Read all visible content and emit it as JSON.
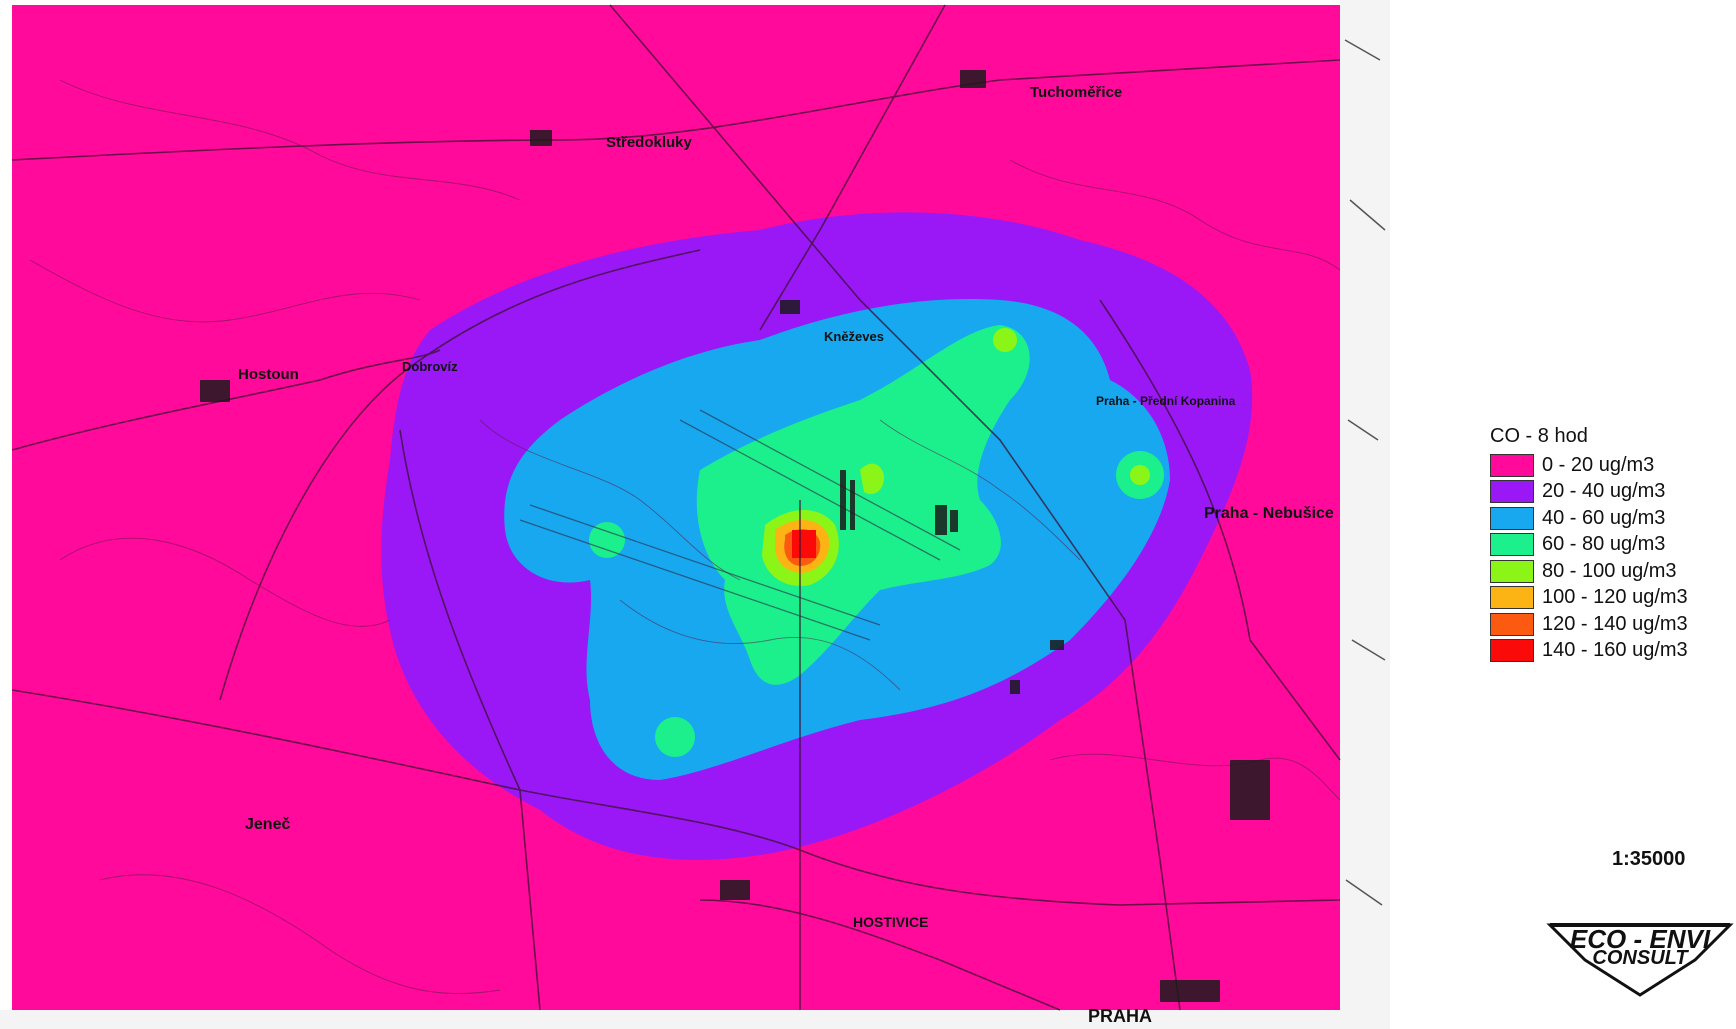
{
  "map": {
    "places": [
      {
        "id": "tuchomerice",
        "label": "Tuchoměřice"
      },
      {
        "id": "stredokluky",
        "label": "Středokluky"
      },
      {
        "id": "kneveves",
        "label": "Kněževes"
      },
      {
        "id": "hostoun",
        "label": "Hostoun"
      },
      {
        "id": "dobrovz",
        "label": "Dobrovíz"
      },
      {
        "id": "predni-kopanina",
        "label": "Praha - Přední Kopanina"
      },
      {
        "id": "nebusice",
        "label": "Praha - Nebušice"
      },
      {
        "id": "jenec",
        "label": "Jeneč"
      },
      {
        "id": "hostivice",
        "label": "HOSTIVICE"
      },
      {
        "id": "praha",
        "label": "PRAHA"
      }
    ]
  },
  "legend": {
    "title": "CO - 8 hod",
    "items": [
      {
        "label": "0 - 20 ug/m3",
        "color": "#ff0a9a"
      },
      {
        "label": "20 - 40 ug/m3",
        "color": "#9a18f5"
      },
      {
        "label": "40 - 60 ug/m3",
        "color": "#18a8f0"
      },
      {
        "label": "60 - 80 ug/m3",
        "color": "#1cf08c"
      },
      {
        "label": "80 - 100 ug/m3",
        "color": "#8cf518"
      },
      {
        "label": "100 - 120 ug/m3",
        "color": "#fbb414"
      },
      {
        "label": "120 - 140 ug/m3",
        "color": "#fb5a10"
      },
      {
        "label": "140 - 160 ug/m3",
        "color": "#fb0a0a"
      }
    ]
  },
  "scale": "1:35000",
  "logo": {
    "line1": "ECO - ENVI",
    "line2": "CONSULT"
  }
}
